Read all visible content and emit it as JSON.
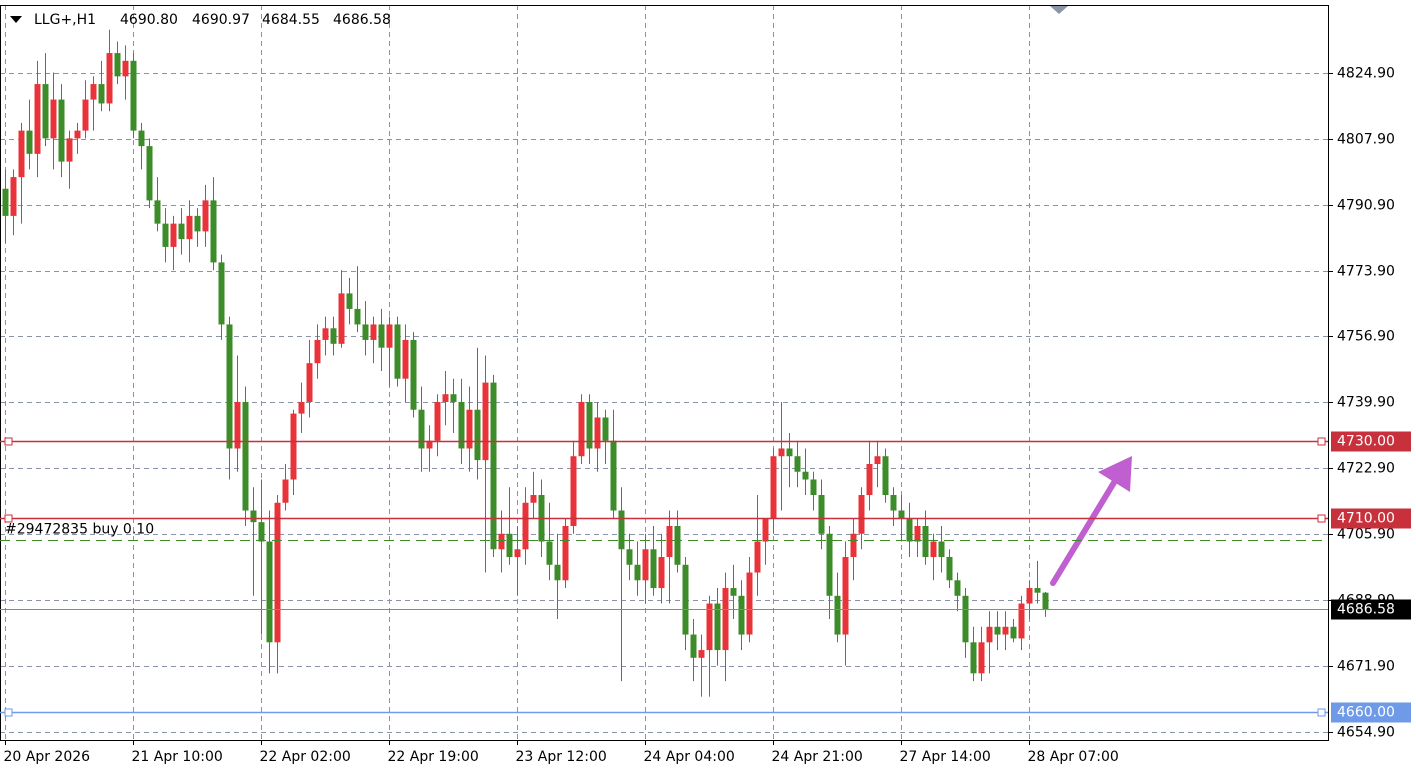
{
  "chart_data": {
    "type": "candlestick",
    "symbol": "LLG+,H1",
    "last_quote": [
      {
        "value": 4690.8,
        "label": "4690.80"
      },
      {
        "value": 4690.97,
        "label": "4690.97"
      },
      {
        "value": 4684.55,
        "label": "4684.55"
      },
      {
        "value": 4686.58,
        "label": "4686.58"
      }
    ],
    "up_color": "#e8333a",
    "down_color": "#3d8c2a",
    "grid": true,
    "ylim": [
      4652.8,
      4842.4
    ],
    "yticks": [
      {
        "value": 4654.9,
        "label": "4654.90"
      },
      {
        "value": 4671.9,
        "label": "4671.90"
      },
      {
        "value": 4688.9,
        "label": "4688.90"
      },
      {
        "value": 4705.9,
        "label": "4705.90"
      },
      {
        "value": 4722.9,
        "label": "4722.90"
      },
      {
        "value": 4739.9,
        "label": "4739.90"
      },
      {
        "value": 4756.9,
        "label": "4756.90"
      },
      {
        "value": 4773.9,
        "label": "4773.90"
      },
      {
        "value": 4790.9,
        "label": "4790.90"
      },
      {
        "value": 4807.9,
        "label": "4807.90"
      },
      {
        "value": 4824.9,
        "label": "4824.90"
      }
    ],
    "xlim": [
      -0.625,
      165.375
    ],
    "xticks": [
      {
        "value": 0,
        "label": "20 Apr 2026"
      },
      {
        "value": 16,
        "label": "21 Apr 10:00"
      },
      {
        "value": 32,
        "label": "22 Apr 02:00"
      },
      {
        "value": 48,
        "label": "22 Apr 19:00"
      },
      {
        "value": 64,
        "label": "23 Apr 12:00"
      },
      {
        "value": 80,
        "label": "24 Apr 04:00"
      },
      {
        "value": 96,
        "label": "24 Apr 21:00"
      },
      {
        "value": 112,
        "label": "27 Apr 14:00"
      },
      {
        "value": 128,
        "label": "28 Apr 07:00"
      }
    ],
    "price_lines": [
      {
        "value": 4730,
        "label": "4730.00",
        "color": "#c8313b"
      },
      {
        "value": 4710,
        "label": "4710.00",
        "color": "#c8313b"
      },
      {
        "value": 4660,
        "label": "4660.00",
        "color": "#6f9ae8"
      }
    ],
    "current_price": {
      "value": 4686.58,
      "label": "4686.58",
      "color": "#7a8aa6"
    },
    "order": {
      "label": "#29472835 buy 0.10",
      "value": 4704.4,
      "color": "#3d8c2a"
    },
    "open": [
      4795,
      4788,
      4798,
      4810,
      4804,
      4822,
      4808,
      4818,
      4802,
      4808,
      4810,
      4818,
      4822,
      4817,
      4830,
      4824,
      4828,
      4810,
      4806,
      4792,
      4786,
      4780,
      4786,
      4782,
      4788,
      4784,
      4792,
      4776,
      4760,
      4728,
      4740,
      4712,
      4709,
      4704,
      4678,
      4714,
      4720,
      4737,
      4740,
      4750,
      4756,
      4759,
      4755,
      4768,
      4764,
      4760,
      4756,
      4760,
      4754,
      4760,
      4746,
      4756,
      4738,
      4728,
      4730,
      4740,
      4742,
      4740,
      4728,
      4738,
      4725,
      4745,
      4702,
      4706,
      4700,
      4702,
      4714,
      4716,
      4704,
      4698,
      4694,
      4708,
      4726,
      4740,
      4728,
      4736,
      4730,
      4712,
      4702,
      4698,
      4694,
      4702,
      4692,
      4700,
      4708,
      4698,
      4680,
      4674,
      4676,
      4688,
      4676,
      4692,
      4690,
      4680,
      4696,
      4704,
      4710,
      4726,
      4728,
      4726,
      4722,
      4720,
      4716,
      4706,
      4690,
      4680,
      4700,
      4706,
      4716,
      4724,
      4726,
      4716,
      4712,
      4710,
      4704,
      4708,
      4700,
      4704,
      4700,
      4694,
      4690,
      4678,
      4670,
      4678,
      4682,
      4680,
      4682,
      4679,
      4688,
      4692,
      4690.8
    ],
    "high": [
      4800,
      4800,
      4812,
      4818,
      4828,
      4830,
      4825,
      4822,
      4810,
      4812,
      4823,
      4824,
      4828,
      4836,
      4833,
      4832,
      4830,
      4812,
      4808,
      4798,
      4790,
      4788,
      4790,
      4792,
      4790,
      4796,
      4798,
      4778,
      4762,
      4752,
      4744,
      4718,
      4720,
      4712,
      4716,
      4724,
      4738,
      4745,
      4756,
      4760,
      4762,
      4762,
      4774,
      4772,
      4775,
      4766,
      4762,
      4764,
      4762,
      4762,
      4760,
      4758,
      4744,
      4734,
      4742,
      4748,
      4746,
      4746,
      4744,
      4754,
      4752,
      4747,
      4712,
      4718,
      4708,
      4718,
      4722,
      4720,
      4714,
      4706,
      4710,
      4730,
      4742,
      4742,
      4740,
      4738,
      4738,
      4718,
      4706,
      4704,
      4706,
      4708,
      4706,
      4712,
      4712,
      4700,
      4684,
      4680,
      4690,
      4692,
      4696,
      4698,
      4694,
      4700,
      4716,
      4710,
      4728,
      4740,
      4732,
      4730,
      4728,
      4722,
      4720,
      4708,
      4696,
      4704,
      4710,
      4718,
      4730,
      4730,
      4728,
      4718,
      4716,
      4714,
      4710,
      4712,
      4706,
      4708,
      4702,
      4696,
      4692,
      4682,
      4682,
      4686,
      4686,
      4686,
      4684,
      4690,
      4694,
      4699,
      4690.97
    ],
    "low": [
      4781,
      4783,
      4786,
      4800,
      4798,
      4806,
      4800,
      4798,
      4795,
      4804,
      4808,
      4810,
      4815,
      4815,
      4822,
      4818,
      4808,
      4800,
      4790,
      4784,
      4776,
      4774,
      4778,
      4776,
      4780,
      4780,
      4774,
      4756,
      4720,
      4722,
      4708,
      4690,
      4680,
      4670,
      4670,
      4712,
      4716,
      4732,
      4736,
      4746,
      4752,
      4752,
      4754,
      4760,
      4758,
      4752,
      4750,
      4748,
      4744,
      4744,
      4740,
      4736,
      4722,
      4722,
      4726,
      4734,
      4732,
      4724,
      4722,
      4720,
      4696,
      4700,
      4696,
      4698,
      4690,
      4698,
      4710,
      4700,
      4694,
      4684,
      4692,
      4706,
      4724,
      4724,
      4722,
      4724,
      4710,
      4668,
      4694,
      4690,
      4688,
      4690,
      4688,
      4688,
      4696,
      4676,
      4668,
      4664,
      4664,
      4672,
      4668,
      4684,
      4676,
      4678,
      4690,
      4698,
      4706,
      4712,
      4718,
      4718,
      4716,
      4712,
      4702,
      4684,
      4678,
      4672,
      4694,
      4702,
      4712,
      4718,
      4714,
      4708,
      4704,
      4700,
      4700,
      4698,
      4694,
      4696,
      4692,
      4686,
      4674,
      4668,
      4668,
      4670,
      4676,
      4676,
      4678,
      4676,
      4684,
      4688,
      4684.55
    ],
    "close": [
      4788,
      4798,
      4810,
      4804,
      4822,
      4808,
      4818,
      4802,
      4808,
      4810,
      4818,
      4822,
      4817,
      4830,
      4824,
      4828,
      4810,
      4806,
      4792,
      4786,
      4780,
      4786,
      4782,
      4788,
      4784,
      4792,
      4776,
      4760,
      4728,
      4740,
      4712,
      4709,
      4704,
      4678,
      4714,
      4720,
      4737,
      4740,
      4750,
      4756,
      4759,
      4755,
      4768,
      4764,
      4760,
      4756,
      4760,
      4754,
      4760,
      4746,
      4756,
      4738,
      4728,
      4730,
      4740,
      4742,
      4740,
      4728,
      4738,
      4725,
      4745,
      4702,
      4706,
      4700,
      4702,
      4714,
      4716,
      4704,
      4698,
      4694,
      4708,
      4726,
      4740,
      4728,
      4736,
      4730,
      4712,
      4702,
      4698,
      4694,
      4702,
      4692,
      4700,
      4708,
      4698,
      4680,
      4674,
      4676,
      4688,
      4676,
      4692,
      4690,
      4680,
      4696,
      4704,
      4710,
      4726,
      4728,
      4726,
      4722,
      4720,
      4716,
      4706,
      4690,
      4680,
      4700,
      4706,
      4716,
      4724,
      4726,
      4716,
      4712,
      4710,
      4704,
      4708,
      4700,
      4704,
      4700,
      4694,
      4690,
      4678,
      4670,
      4678,
      4682,
      4680,
      4682,
      4679,
      4688,
      4692,
      4690.8,
      4686.58
    ]
  }
}
